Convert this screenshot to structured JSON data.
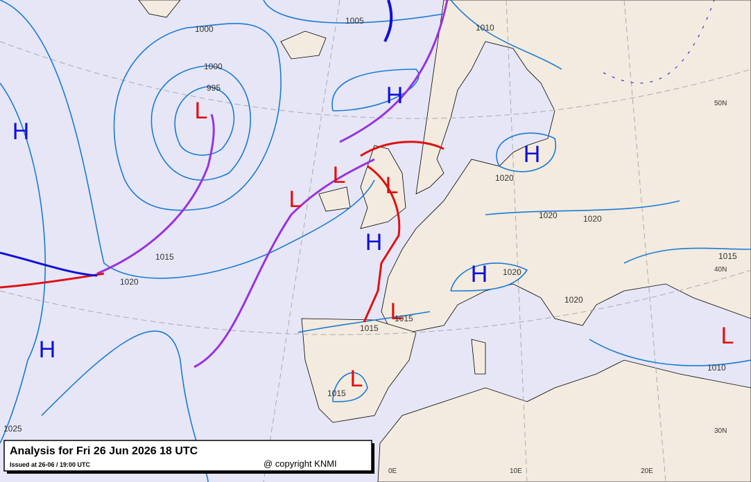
{
  "map": {
    "title": "Analysis for Fri 26 Jun 2026 18 UTC",
    "issued": "Issued at 26-06 / 19:00 UTC",
    "copyright": "@ copyright KNMI",
    "pressure_centers": [
      "H",
      "H",
      "L",
      "H",
      "L",
      "L",
      "L",
      "H",
      "H",
      "H",
      "L",
      "L",
      "L"
    ],
    "isobar_labels": [
      "1000",
      "1005",
      "1010",
      "1000",
      "995",
      "1015",
      "1020",
      "1020",
      "1020",
      "1020",
      "1020",
      "1020",
      "1015",
      "1015",
      "1015",
      "1015",
      "1010",
      "1025"
    ],
    "graticule_labels": [
      "50N",
      "40N",
      "30N",
      "0E",
      "10E",
      "20E"
    ]
  }
}
